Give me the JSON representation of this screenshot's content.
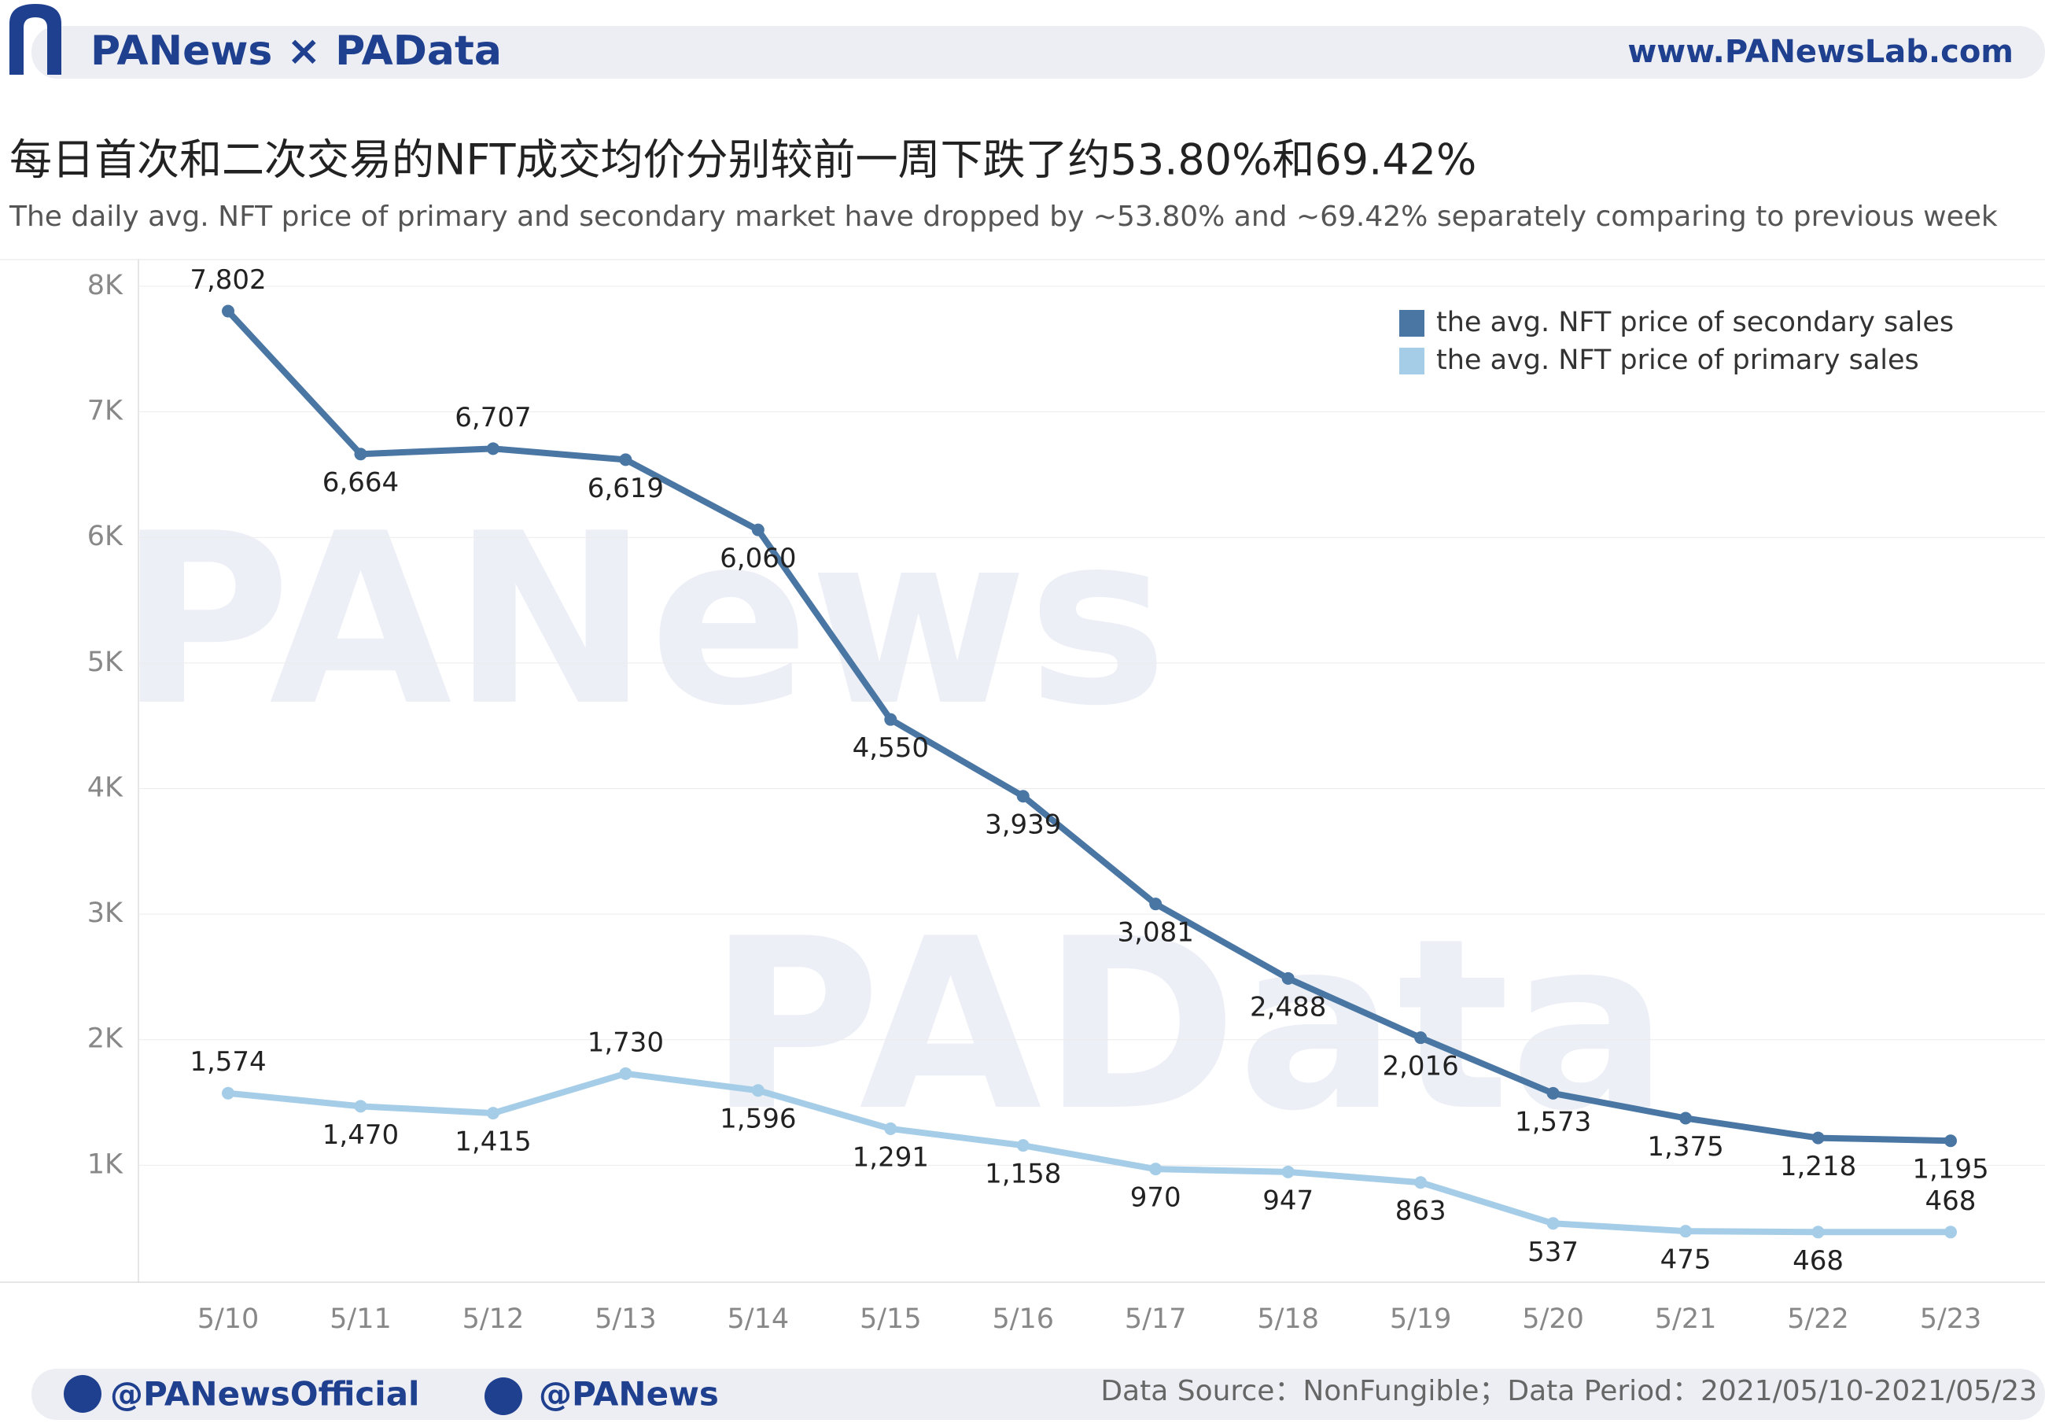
{
  "header": {
    "brand": "PANews × PAData",
    "site": "www.PANewsLab.com"
  },
  "chart_data": {
    "type": "line",
    "title": "每日首次和二次交易的NFT成交均价分别较前一周下跌了约53.80%和69.42%",
    "subtitle": "The daily avg. NFT price of primary and secondary market have dropped by ~53.80% and ~69.42% separately comparing to previous week",
    "watermarks": [
      "PANews",
      "PAData"
    ],
    "categories": [
      "5/10",
      "5/11",
      "5/12",
      "5/13",
      "5/14",
      "5/15",
      "5/16",
      "5/17",
      "5/18",
      "5/19",
      "5/20",
      "5/21",
      "5/22",
      "5/23"
    ],
    "series": [
      {
        "name": "the avg. NFT price of secondary sales",
        "color": "#4a76a4",
        "values": [
          7802,
          6664,
          6707,
          6619,
          6060,
          4550,
          3939,
          3081,
          2488,
          2016,
          1573,
          1375,
          1218,
          1195
        ],
        "value_labels": [
          "7,802",
          "6,664",
          "6,707",
          "6,619",
          "6,060",
          "4,550",
          "3,939",
          "3,081",
          "2,488",
          "2,016",
          "1,573",
          "1,375",
          "1,218",
          "1,195"
        ]
      },
      {
        "name": "the avg. NFT price of primary sales",
        "color": "#a6cde8",
        "values": [
          1574,
          1470,
          1415,
          1730,
          1596,
          1291,
          1158,
          970,
          947,
          863,
          537,
          475,
          468,
          468
        ],
        "value_labels": [
          "1,574",
          "1,470",
          "1,415",
          "1,730",
          "1,596",
          "1,291",
          "1,158",
          "970",
          "947",
          "863",
          "537",
          "475",
          "468",
          "468"
        ]
      }
    ],
    "ylim": [
      0,
      8200
    ],
    "yticks": [
      {
        "value": 1000,
        "label": "1K"
      },
      {
        "value": 2000,
        "label": "2K"
      },
      {
        "value": 3000,
        "label": "3K"
      },
      {
        "value": 4000,
        "label": "4K"
      },
      {
        "value": 5000,
        "label": "5K"
      },
      {
        "value": 6000,
        "label": "6K"
      },
      {
        "value": 7000,
        "label": "7K"
      },
      {
        "value": 8000,
        "label": "8K"
      }
    ],
    "grid": true,
    "legend": "top-right"
  },
  "footer": {
    "twitter": "@PANewsOfficial",
    "weibo": "@PANews",
    "source": "Data Source：NonFungible；Data Period：2021/05/10-2021/05/23"
  }
}
